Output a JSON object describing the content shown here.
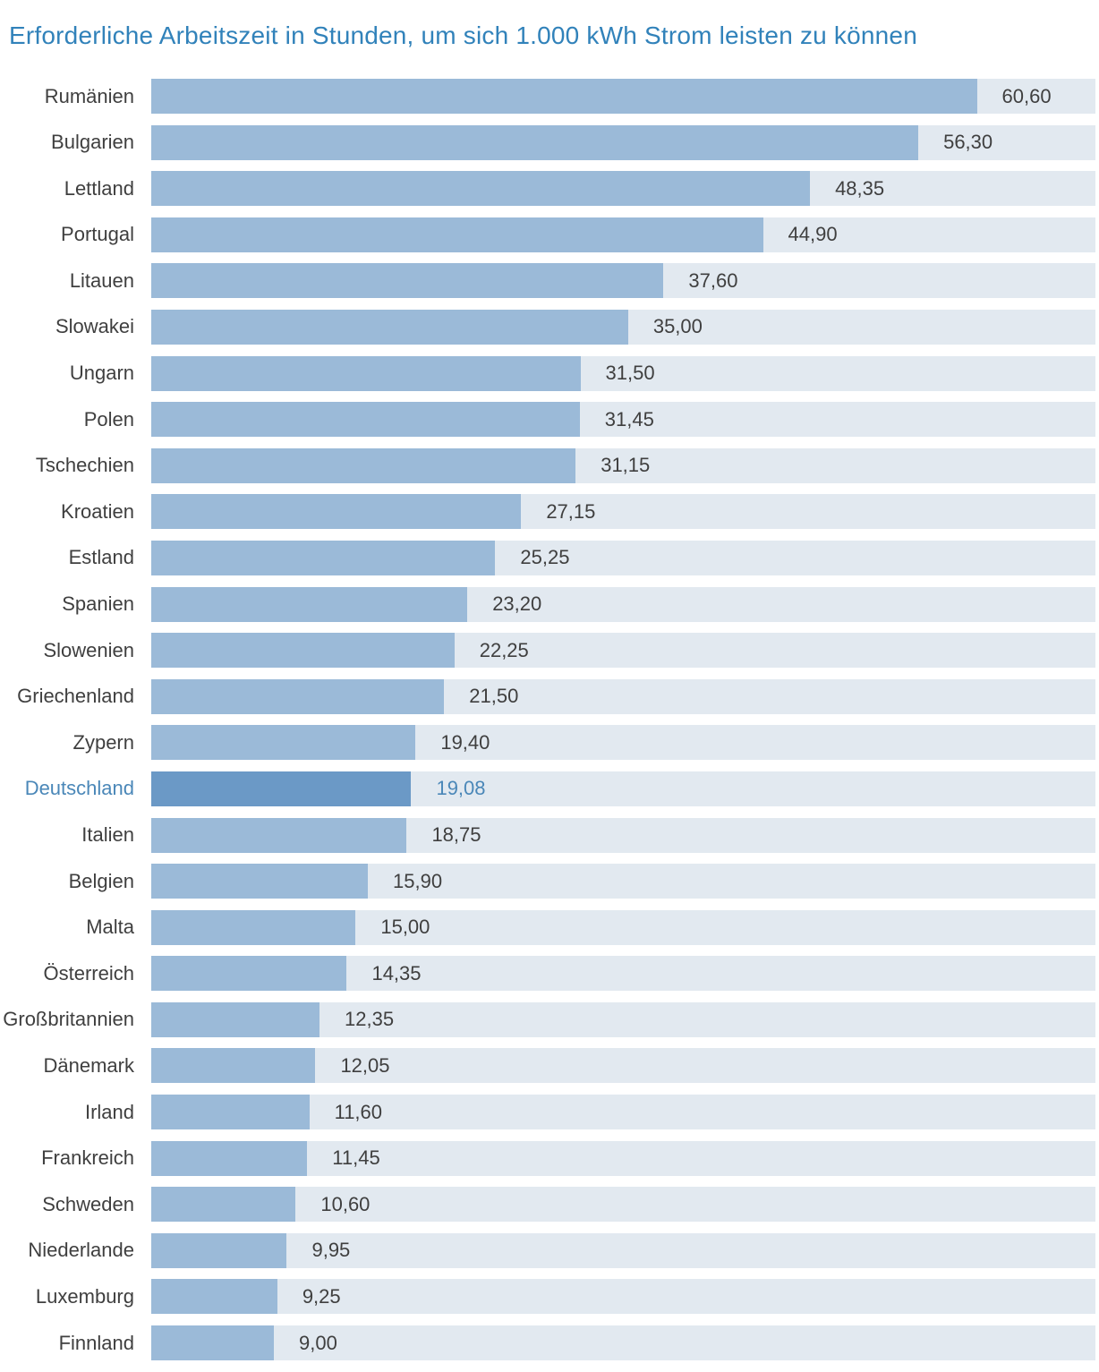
{
  "title": "Erforderliche Arbeitszeit in Stunden, um sich 1.000 kWh Strom leisten zu können",
  "colors": {
    "background": "#ffffff",
    "title": "#3182ba",
    "bar": "#9bbad8",
    "bar_highlight": "#6b99c6",
    "track": "#e2e9f0",
    "label": "#3f3f3f",
    "highlight_text": "#4a87b8"
  },
  "chart_data": {
    "type": "bar",
    "orientation": "horizontal",
    "title": "Erforderliche Arbeitszeit in Stunden, um sich 1.000 kWh Strom leisten zu können",
    "xlabel": "",
    "ylabel": "",
    "unit": "Stunden",
    "xlim": [
      0,
      69.3
    ],
    "grid": false,
    "legend": "none",
    "highlight_category": "Deutschland",
    "rows": [
      {
        "label": "Rumänien",
        "value": 60.6,
        "display": "60,60",
        "highlight": false
      },
      {
        "label": "Bulgarien",
        "value": 56.3,
        "display": "56,30",
        "highlight": false
      },
      {
        "label": "Lettland",
        "value": 48.35,
        "display": "48,35",
        "highlight": false
      },
      {
        "label": "Portugal",
        "value": 44.9,
        "display": "44,90",
        "highlight": false
      },
      {
        "label": "Litauen",
        "value": 37.6,
        "display": "37,60",
        "highlight": false
      },
      {
        "label": "Slowakei",
        "value": 35.0,
        "display": "35,00",
        "highlight": false
      },
      {
        "label": "Ungarn",
        "value": 31.5,
        "display": "31,50",
        "highlight": false
      },
      {
        "label": "Polen",
        "value": 31.45,
        "display": "31,45",
        "highlight": false
      },
      {
        "label": "Tschechien",
        "value": 31.15,
        "display": "31,15",
        "highlight": false
      },
      {
        "label": "Kroatien",
        "value": 27.15,
        "display": "27,15",
        "highlight": false
      },
      {
        "label": "Estland",
        "value": 25.25,
        "display": "25,25",
        "highlight": false
      },
      {
        "label": "Spanien",
        "value": 23.2,
        "display": "23,20",
        "highlight": false
      },
      {
        "label": "Slowenien",
        "value": 22.25,
        "display": "22,25",
        "highlight": false
      },
      {
        "label": "Griechenland",
        "value": 21.5,
        "display": "21,50",
        "highlight": false
      },
      {
        "label": "Zypern",
        "value": 19.4,
        "display": "19,40",
        "highlight": false
      },
      {
        "label": "Deutschland",
        "value": 19.08,
        "display": "19,08",
        "highlight": true
      },
      {
        "label": "Italien",
        "value": 18.75,
        "display": "18,75",
        "highlight": false
      },
      {
        "label": "Belgien",
        "value": 15.9,
        "display": "15,90",
        "highlight": false
      },
      {
        "label": "Malta",
        "value": 15.0,
        "display": "15,00",
        "highlight": false
      },
      {
        "label": "Österreich",
        "value": 14.35,
        "display": "14,35",
        "highlight": false
      },
      {
        "label": "Großbritannien",
        "value": 12.35,
        "display": "12,35",
        "highlight": false
      },
      {
        "label": "Dänemark",
        "value": 12.05,
        "display": "12,05",
        "highlight": false
      },
      {
        "label": "Irland",
        "value": 11.6,
        "display": "11,60",
        "highlight": false
      },
      {
        "label": "Frankreich",
        "value": 11.45,
        "display": "11,45",
        "highlight": false
      },
      {
        "label": "Schweden",
        "value": 10.6,
        "display": "10,60",
        "highlight": false
      },
      {
        "label": "Niederlande",
        "value": 9.95,
        "display": "9,95",
        "highlight": false
      },
      {
        "label": "Luxemburg",
        "value": 9.25,
        "display": "9,25",
        "highlight": false
      },
      {
        "label": "Finnland",
        "value": 9.0,
        "display": "9,00",
        "highlight": false
      }
    ]
  }
}
